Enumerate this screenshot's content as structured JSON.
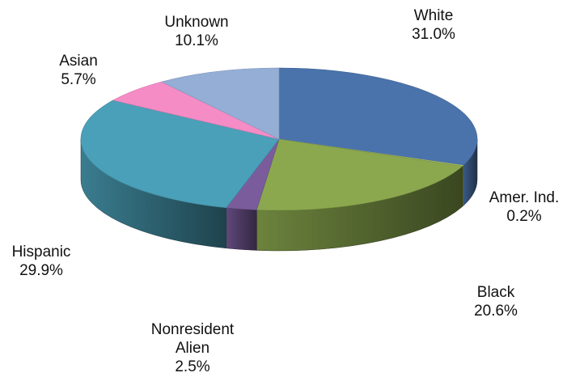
{
  "chart_data": {
    "type": "pie",
    "style": "3d",
    "legend": "none",
    "slices": [
      {
        "label": "White",
        "value": 31.0,
        "display": "31.0%",
        "color": "#4a73ab"
      },
      {
        "label": "Amer. Ind.",
        "value": 0.2,
        "display": "0.2%",
        "color": "#b9cc6a"
      },
      {
        "label": "Black",
        "value": 20.6,
        "display": "20.6%",
        "color": "#8ba84e"
      },
      {
        "label": "Nonresident Alien",
        "label_lines": [
          "Nonresident",
          "Alien"
        ],
        "value": 2.5,
        "display": "2.5%",
        "color": "#7a5c9c"
      },
      {
        "label": "Hispanic",
        "value": 29.9,
        "display": "29.9%",
        "color": "#4aa0b8"
      },
      {
        "label": "Asian",
        "value": 5.7,
        "display": "5.7%",
        "color": "#f58cc6"
      },
      {
        "label": "Unknown",
        "value": 10.1,
        "display": "10.1%",
        "color": "#94aed6"
      }
    ]
  }
}
